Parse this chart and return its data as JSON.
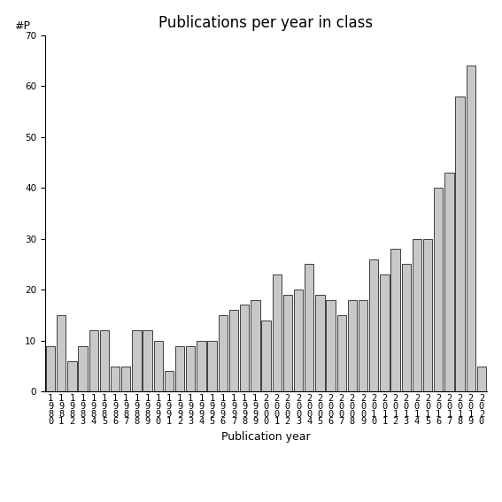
{
  "title": "Publications per year in class",
  "xlabel": "Publication year",
  "ylabel": "#P",
  "years": [
    1980,
    1981,
    1982,
    1983,
    1984,
    1985,
    1986,
    1987,
    1988,
    1989,
    1990,
    1991,
    1992,
    1993,
    1994,
    1995,
    1996,
    1997,
    1998,
    1999,
    2000,
    2001,
    2002,
    2003,
    2004,
    2005,
    2006,
    2007,
    2008,
    2009,
    2010,
    2011,
    2012,
    2013,
    2014,
    2015,
    2016,
    2017,
    2018,
    2019,
    2020
  ],
  "values": [
    9,
    15,
    6,
    9,
    12,
    12,
    5,
    5,
    12,
    12,
    10,
    4,
    9,
    9,
    10,
    10,
    15,
    16,
    17,
    18,
    14,
    23,
    19,
    20,
    25,
    19,
    18,
    15,
    18,
    18,
    26,
    23,
    28,
    25,
    30,
    30,
    40,
    43,
    58,
    64,
    5
  ],
  "bar_color": "#c8c8c8",
  "bar_edge_color": "#000000",
  "ylim": [
    0,
    70
  ],
  "yticks": [
    0,
    10,
    20,
    30,
    40,
    50,
    60,
    70
  ],
  "bg_color": "#ffffff",
  "title_fontsize": 12,
  "label_fontsize": 9,
  "tick_fontsize": 7.5
}
